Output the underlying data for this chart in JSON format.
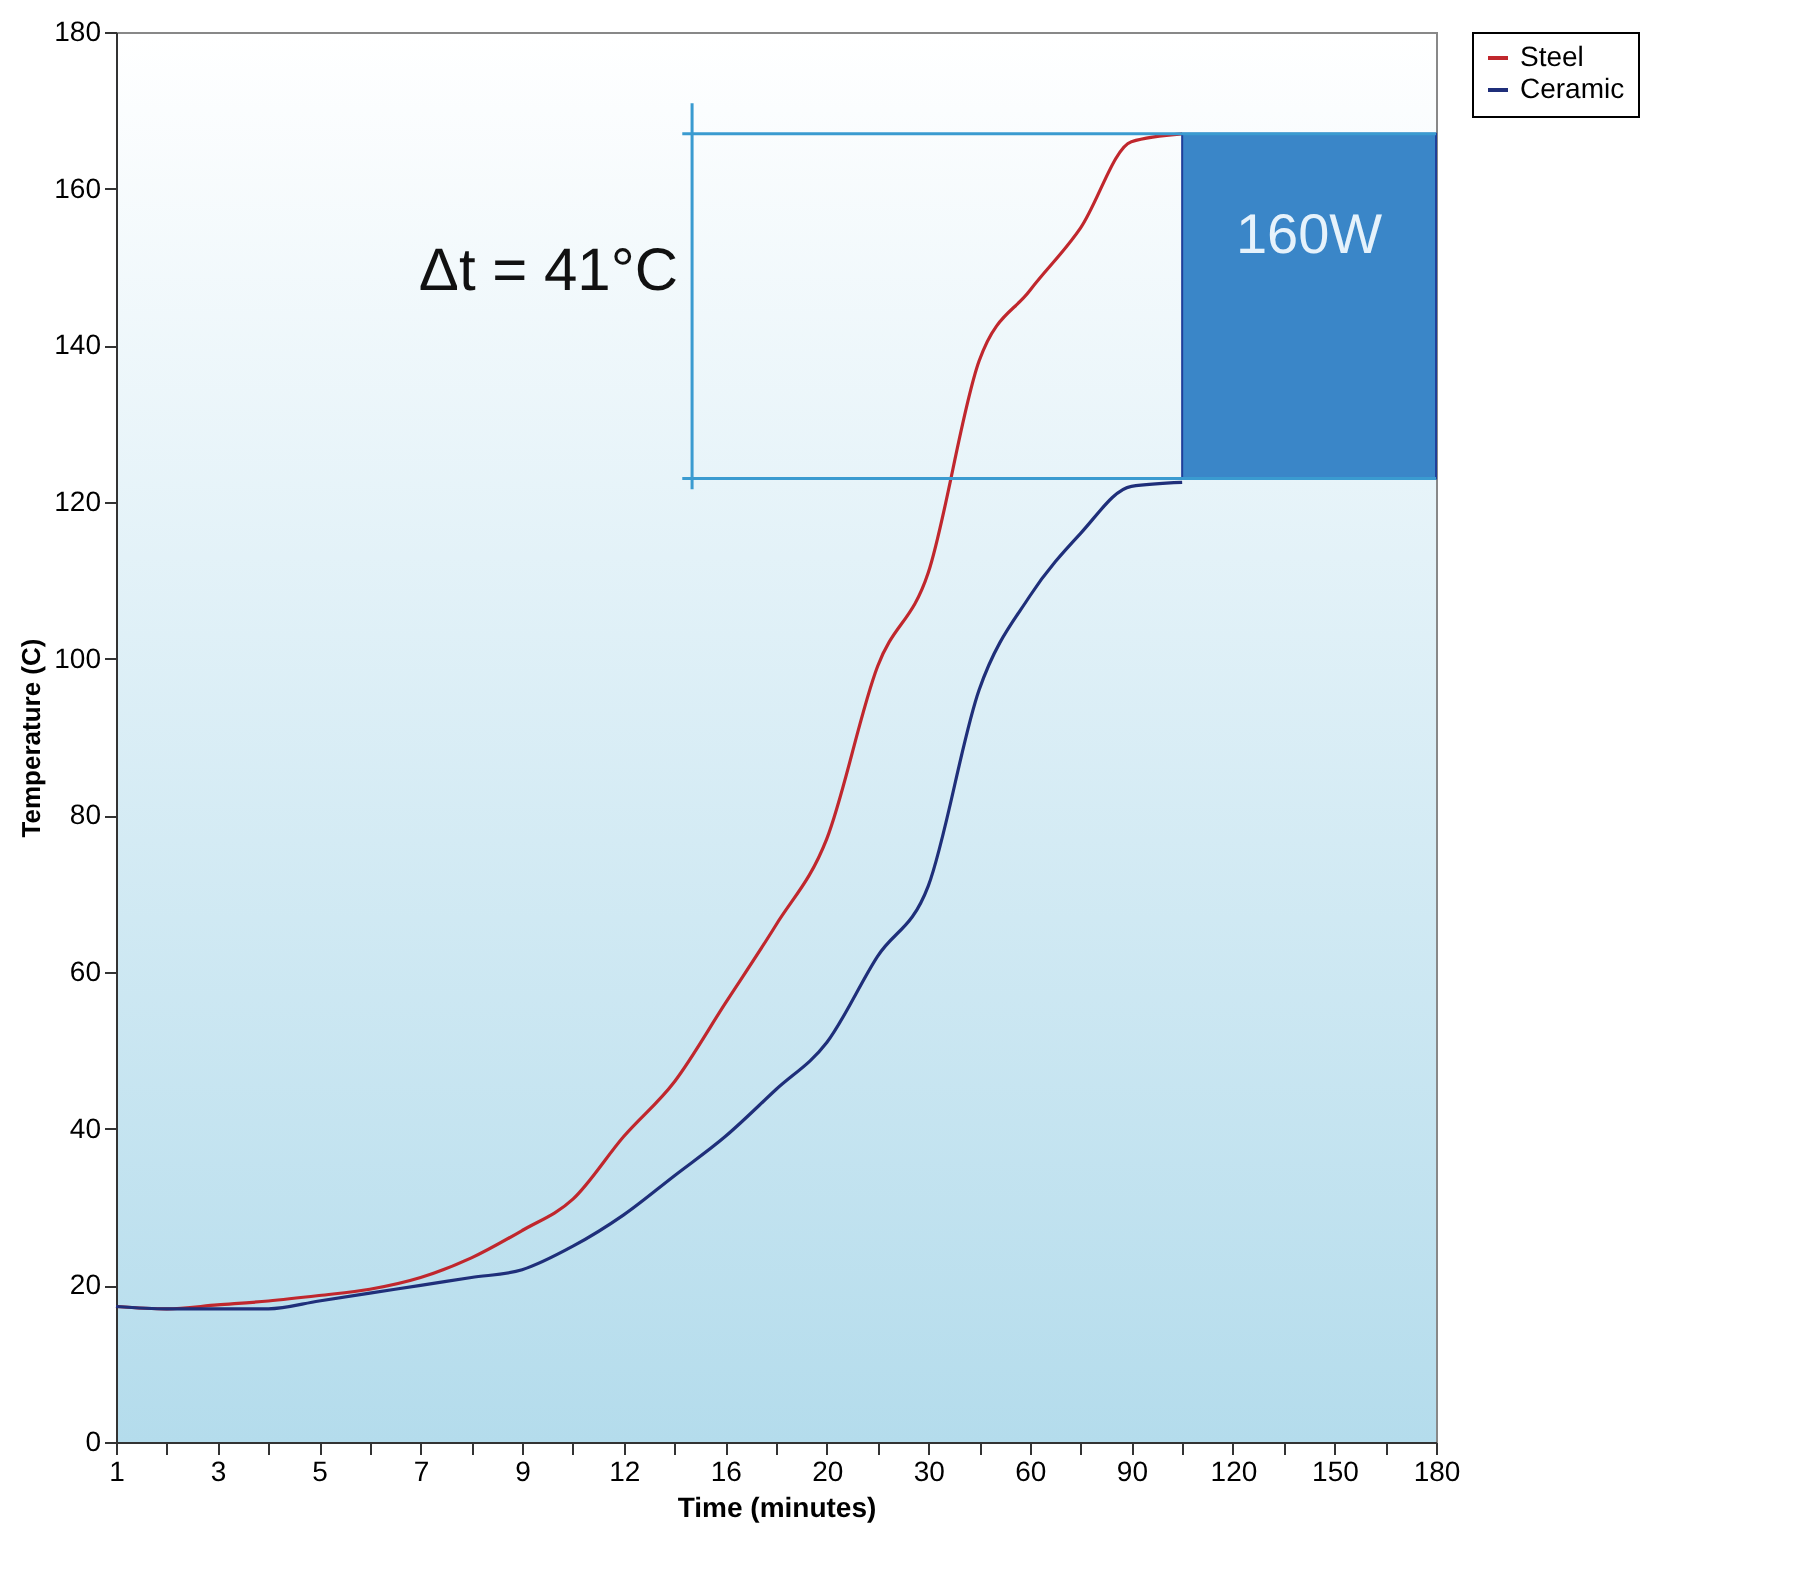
{
  "chart_data": {
    "type": "line",
    "xlabel": "Time (minutes)",
    "ylabel": "Temperature (C)",
    "categories": [
      "1",
      null,
      "3",
      null,
      "5",
      null,
      "7",
      null,
      "9",
      null,
      "12",
      null,
      "16",
      null,
      "20",
      null,
      "30",
      null,
      "60",
      null,
      "90",
      null,
      "120",
      null,
      "150",
      null,
      "180"
    ],
    "series": [
      {
        "name": "Steel",
        "color": "#c0272d",
        "values": [
          17.3,
          17,
          17.5,
          18,
          18.7,
          19.5,
          21,
          23.5,
          27,
          31,
          39,
          46,
          56,
          66,
          77,
          99,
          111,
          138,
          147,
          155,
          166,
          167,
          null,
          null,
          null,
          null,
          null
        ]
      },
      {
        "name": "Ceramic",
        "color": "#1f2f7a",
        "values": [
          17.3,
          17,
          17,
          17,
          18,
          19,
          20,
          21,
          22,
          25,
          29,
          34,
          39,
          45,
          51,
          62,
          71,
          96,
          108,
          116,
          122,
          122.5,
          null,
          null,
          null,
          null,
          null
        ]
      }
    ],
    "ylim": [
      0,
      180
    ],
    "yticks": [
      0,
      20,
      40,
      60,
      80,
      100,
      120,
      140,
      160,
      180
    ],
    "legend": "top right",
    "grid": false,
    "ref_lines": [
      {
        "axis": "y",
        "value": 167,
        "color": "#3a9bd0"
      },
      {
        "axis": "y",
        "value": 123,
        "color": "#3a9bd0"
      }
    ],
    "bands": [
      {
        "axis": "y",
        "from": 123,
        "to": 167,
        "label": "160W",
        "color": "#3a86c8"
      }
    ],
    "annotations": [
      "Δt = 41°C"
    ]
  }
}
